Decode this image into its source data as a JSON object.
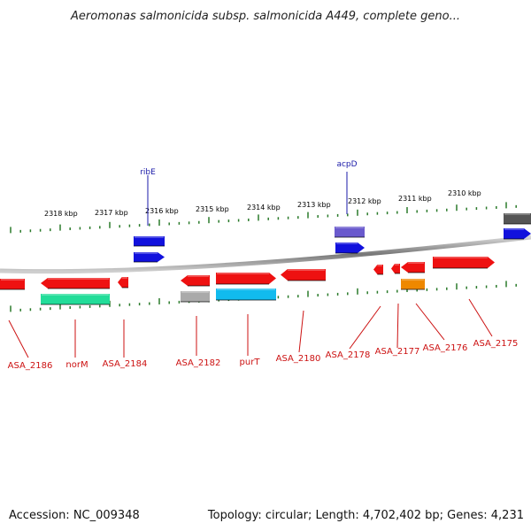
{
  "title": "Aeromonas salmonicida subsp. salmonicida A449, complete geno...",
  "footer": {
    "accession": "Accession: NC_009348",
    "summary": "Topology: circular; Length: 4,702,402 bp; Genes: 4,231"
  },
  "scale_labels": [
    "2318 kbp",
    "2317 kbp",
    "2316 kbp",
    "2315 kbp",
    "2314 kbp",
    "2313 kbp",
    "2312 kbp",
    "2311 kbp",
    "2310 kbp"
  ],
  "top_gene_labels": [
    "ribE",
    "acpD"
  ],
  "bottom_gene_labels": [
    "ASA_2186",
    "norM",
    "ASA_2184",
    "ASA_2182",
    "purT",
    "ASA_2180",
    "ASA_2178",
    "ASA_2177",
    "ASA_2176",
    "ASA_2175"
  ],
  "colors": {
    "red": "#ee1111",
    "blue": "#1111dd",
    "slate": "#6a5acd",
    "green": "#22dd99",
    "cyan": "#11bbee",
    "gray": "#aaaaaa",
    "orange": "#ee8800",
    "dark": "#555555",
    "tick": "#2a7a2a",
    "label_red": "#cc1111",
    "label_blue": "#1a1aa8"
  }
}
